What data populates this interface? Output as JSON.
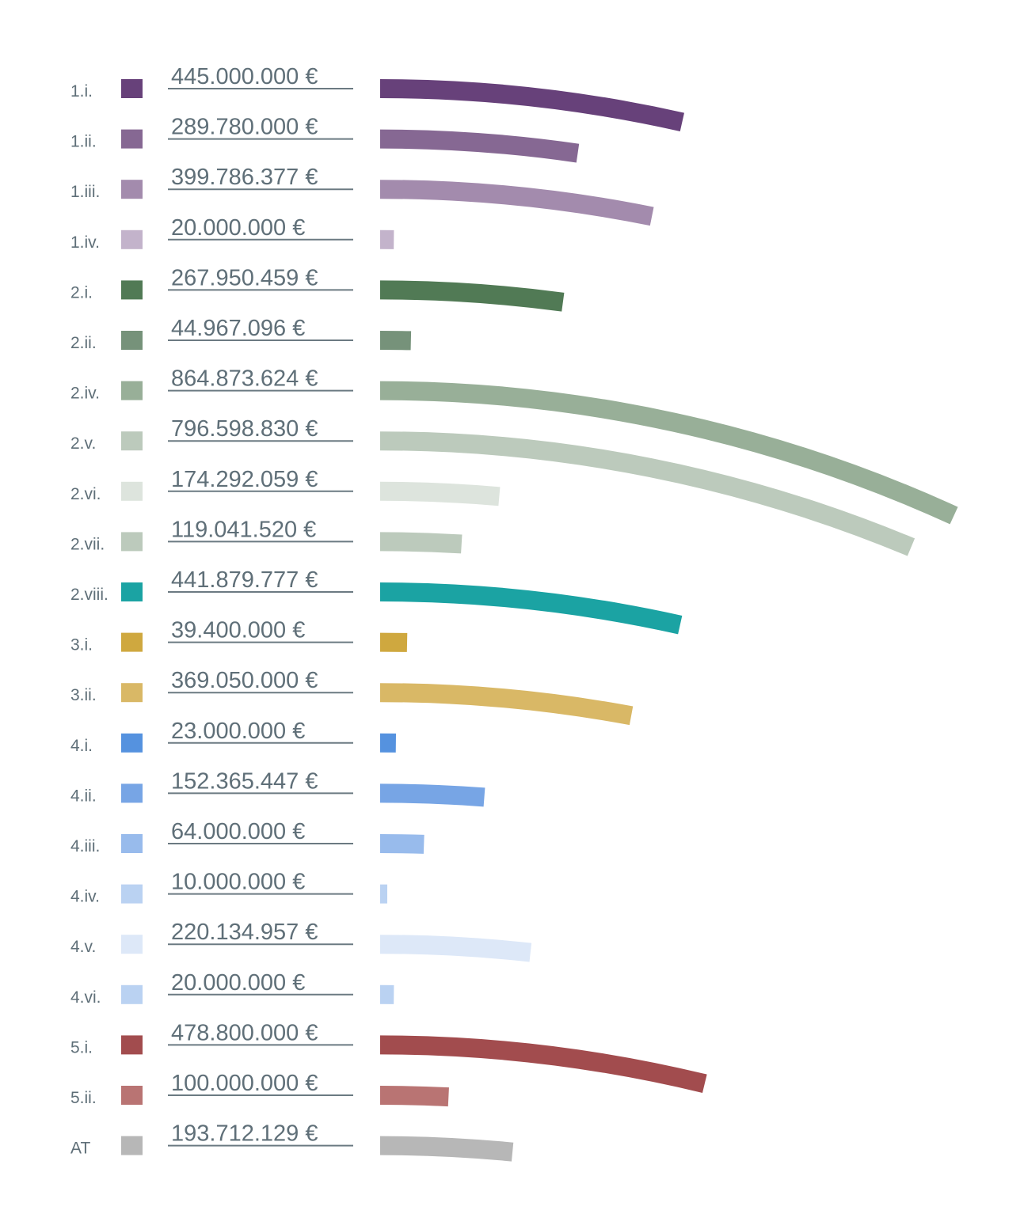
{
  "chart_data": {
    "type": "bar",
    "orientation": "horizontal-curved",
    "title": "",
    "xlabel": "",
    "ylabel": "",
    "unit": "€",
    "categories": [
      "1.i.",
      "1.ii.",
      "1.iii.",
      "1.iv.",
      "2.i.",
      "2.ii.",
      "2.iv.",
      "2.v.",
      "2.vi.",
      "2.vii.",
      "2.viii.",
      "3.i.",
      "3.ii.",
      "4.i.",
      "4.ii.",
      "4.iii.",
      "4.iv.",
      "4.v.",
      "4.vi.",
      "5.i.",
      "5.ii.",
      "AT"
    ],
    "values": [
      445000000,
      289780000,
      399786377,
      20000000,
      267950459,
      44967096,
      864873624,
      796598830,
      174292059,
      119041520,
      441879777,
      39400000,
      369050000,
      23000000,
      152365447,
      64000000,
      10000000,
      220134957,
      20000000,
      478800000,
      100000000,
      193712129
    ],
    "value_labels": [
      "445.000.000 €",
      "289.780.000 €",
      "399.786.377 €",
      "20.000.000 €",
      "267.950.459 €",
      "44.967.096 €",
      "864.873.624 €",
      "796.598.830 €",
      "174.292.059 €",
      "119.041.520 €",
      "441.879.777 €",
      "39.400.000 €",
      "369.050.000 €",
      "23.000.000 €",
      "152.365.447 €",
      "64.000.000 €",
      "10.000.000 €",
      "220.134.957 €",
      "20.000.000 €",
      "478.800.000 €",
      "100.000.000 €",
      "193.712.129 €"
    ],
    "colors": [
      "#67417a",
      "#866893",
      "#a38bad",
      "#c3b3cb",
      "#517a55",
      "#76927a",
      "#98af98",
      "#bccabc",
      "#dde4dd",
      "#bccabc",
      "#1ba3a3",
      "#cfa83f",
      "#d9b866",
      "#5592df",
      "#77a5e5",
      "#98bbec",
      "#bad2f2",
      "#dde8f8",
      "#bad2f2",
      "#a24c4e",
      "#b97473",
      "#b7b7b7"
    ],
    "grid": false,
    "legend": "none"
  }
}
